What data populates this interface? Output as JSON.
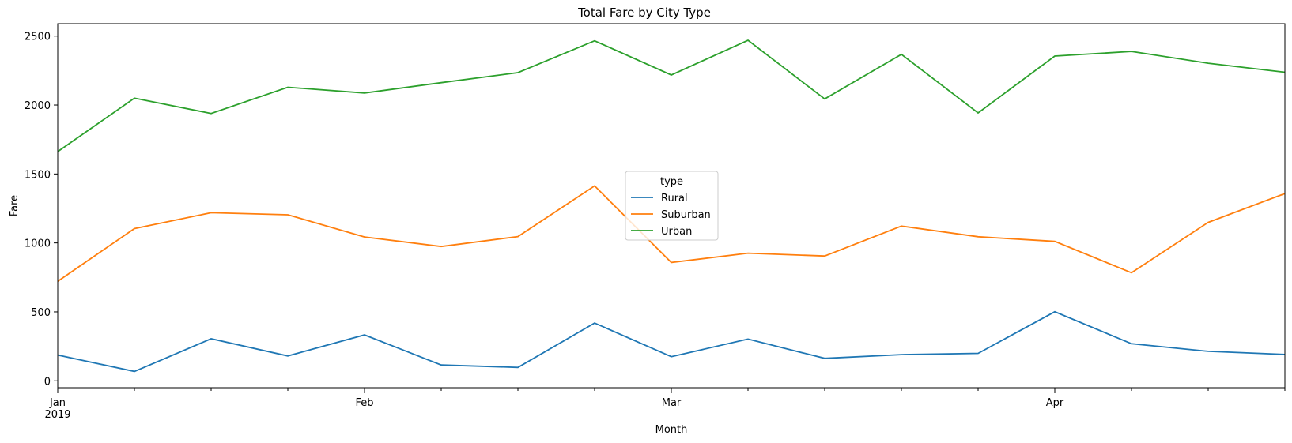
{
  "chart_data": {
    "type": "line",
    "title": "Total Fare by City Type",
    "xlabel": "Month",
    "ylabel": "Fare",
    "x": [
      "2019-01-06",
      "2019-01-13",
      "2019-01-20",
      "2019-01-27",
      "2019-02-03",
      "2019-02-10",
      "2019-02-17",
      "2019-02-24",
      "2019-03-03",
      "2019-03-10",
      "2019-03-17",
      "2019-03-24",
      "2019-03-31",
      "2019-04-07",
      "2019-04-14",
      "2019-04-21",
      "2019-04-28"
    ],
    "xlim": [
      "2019-01-06",
      "2019-04-28"
    ],
    "ylim": [
      -50,
      2590
    ],
    "x_major_ticks": [
      {
        "date": "2019-01-06",
        "label": "Jan",
        "sublabel": "2019"
      },
      {
        "date": "2019-02-03",
        "label": "Feb",
        "sublabel": ""
      },
      {
        "date": "2019-03-03",
        "label": "Mar",
        "sublabel": ""
      },
      {
        "date": "2019-04-07",
        "label": "Apr",
        "sublabel": ""
      }
    ],
    "y_ticks": [
      0,
      500,
      1000,
      1500,
      2000,
      2500
    ],
    "legend": {
      "title": "type",
      "placement": "center"
    },
    "grid": false,
    "series": [
      {
        "name": "Rural",
        "color": "#1f77b4",
        "values": [
          187,
          68,
          305,
          180,
          333,
          115,
          97,
          419,
          175,
          303,
          163,
          190,
          199,
          501,
          269,
          214,
          191
        ]
      },
      {
        "name": "Suburban",
        "color": "#ff7f0e",
        "values": [
          722,
          1104,
          1219,
          1204,
          1043,
          974,
          1046,
          1414,
          858,
          926,
          905,
          1122,
          1045,
          1011,
          784,
          1149,
          1358
        ]
      },
      {
        "name": "Urban",
        "color": "#2ca02c",
        "values": [
          1662,
          2050,
          1939,
          2129,
          2087,
          2162,
          2235,
          2466,
          2218,
          2470,
          2044,
          2368,
          1943,
          2355,
          2389,
          2303,
          2238
        ]
      }
    ]
  }
}
